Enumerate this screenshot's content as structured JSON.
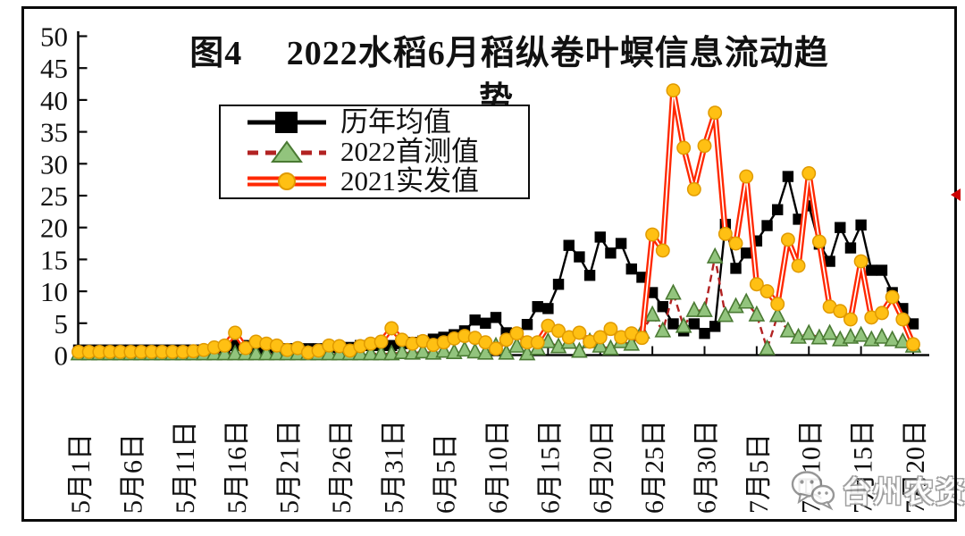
{
  "title": {
    "line1": "图4　 2022水稻6月稻纵卷叶螟信息流动趋",
    "line2": "势"
  },
  "legend": {
    "items": [
      {
        "label": "历年均值"
      },
      {
        "label": "2022首测值"
      },
      {
        "label": "2021实发值"
      }
    ]
  },
  "watermark": {
    "icon": "wechat-icon",
    "text": "台州农资"
  },
  "colors": {
    "axis": "#0a0a0a",
    "avg_line": "#000000",
    "first2022_line": "#b22222",
    "first2022_marker_fill": "#92c47d",
    "first2022_marker_stroke": "#4a7a33",
    "actual2021_line": "#ff2800",
    "actual2021_marker_fill": "#ffc013",
    "actual2021_marker_stroke": "#e09a00"
  },
  "chart_data": {
    "type": "line",
    "title": "图4 2022水稻6月稻纵卷叶螟信息流动趋势",
    "ylim": [
      0,
      50
    ],
    "y_ticks": [
      0,
      5,
      10,
      15,
      20,
      25,
      30,
      35,
      40,
      45,
      50
    ],
    "x_start": "5月1日",
    "x_end": "7月20日",
    "x_days": 81,
    "x_tick_every_days": 5,
    "x_tick_labels": [
      "5月1日",
      "5月6日",
      "5月11日",
      "5月16日",
      "5月21日",
      "5月26日",
      "5月31日",
      "6月5日",
      "6月10日",
      "6月15日",
      "6月20日",
      "6月25日",
      "6月30日",
      "7月5日",
      "7月10日",
      "7月15日",
      "7月20日"
    ],
    "grid": false,
    "legend_position": "upper-left-inside",
    "series": [
      {
        "name": "历年均值",
        "marker": "square",
        "line_style": "solid",
        "color": "#000000",
        "marker_fill": "#000000",
        "marker_stroke": "#000000",
        "values": [
          0.8,
          0.8,
          0.8,
          0.8,
          0.8,
          0.8,
          0.8,
          0.8,
          0.8,
          0.8,
          0.8,
          0.8,
          0.8,
          0.8,
          1.0,
          1.5,
          1.5,
          1.0,
          1.0,
          1.0,
          1.0,
          1.0,
          1.0,
          1.0,
          1.2,
          1.2,
          1.2,
          1.5,
          1.5,
          1.5,
          1.5,
          1.8,
          2.0,
          2.2,
          2.5,
          2.8,
          3.2,
          3.8,
          5.5,
          5.0,
          5.9,
          3.5,
          3.4,
          4.8,
          7.6,
          7.3,
          11.1,
          17.2,
          15.4,
          12.5,
          18.5,
          16.0,
          17.5,
          13.5,
          12.2,
          9.8,
          7.6,
          4.9,
          3.8,
          4.9,
          3.4,
          4.5,
          20.5,
          13.6,
          16.0,
          17.9,
          20.3,
          22.8,
          28.0,
          21.3,
          23.4,
          17.4,
          14.7,
          20.0,
          16.8,
          20.4,
          13.3,
          13.3,
          9.8,
          7.3,
          4.9
        ]
      },
      {
        "name": "2022首测值",
        "marker": "triangle",
        "line_style": "dashed",
        "color": "#b22222",
        "marker_fill": "#92c47d",
        "marker_stroke": "#4a7a33",
        "values": [
          0.2,
          0.2,
          0.2,
          0.2,
          0.2,
          0.2,
          0.2,
          0.2,
          0.2,
          0.2,
          0.2,
          0.2,
          0.2,
          0.2,
          0.2,
          0.2,
          0.2,
          0.2,
          0.2,
          0.2,
          0.2,
          0.2,
          0.2,
          0.2,
          0.2,
          0.2,
          0.2,
          0.2,
          0.2,
          0.2,
          0.2,
          0.4,
          0.3,
          0.5,
          0.3,
          0.6,
          0.4,
          0.8,
          0.5,
          0.3,
          1.4,
          0.3,
          1.4,
          0.2,
          1.0,
          2.1,
          1.3,
          2.0,
          0.6,
          2.1,
          1.4,
          1.0,
          2.1,
          1.7,
          3.6,
          6.3,
          3.8,
          9.7,
          4.5,
          7.0,
          7.0,
          15.4,
          6.2,
          7.6,
          8.3,
          6.3,
          1.0,
          6.2,
          3.8,
          2.8,
          3.4,
          2.7,
          3.4,
          2.4,
          2.8,
          3.1,
          2.4,
          2.8,
          2.4,
          2.1,
          1.4
        ]
      },
      {
        "name": "2021实发值",
        "marker": "circle",
        "line_style": "double",
        "color": "#ff2800",
        "marker_fill": "#ffc013",
        "marker_stroke": "#e09a00",
        "values": [
          0.5,
          0.5,
          0.5,
          0.5,
          0.5,
          0.5,
          0.5,
          0.5,
          0.5,
          0.5,
          0.5,
          0.6,
          0.8,
          1.2,
          1.5,
          3.5,
          1.1,
          2.1,
          1.8,
          1.5,
          0.8,
          1.1,
          0.4,
          0.7,
          1.5,
          1.4,
          0.7,
          1.4,
          1.8,
          2.1,
          4.2,
          2.4,
          1.8,
          2.2,
          1.6,
          2.0,
          2.6,
          3.0,
          2.7,
          2.0,
          1.0,
          2.4,
          3.4,
          2.0,
          2.0,
          4.6,
          3.8,
          2.8,
          3.5,
          2.1,
          2.8,
          4.1,
          2.8,
          3.4,
          2.7,
          18.9,
          16.4,
          41.5,
          32.5,
          26.0,
          32.8,
          38.0,
          19.0,
          17.5,
          28.0,
          11.1,
          10.0,
          8.0,
          18.1,
          14.0,
          28.5,
          17.8,
          7.6,
          6.9,
          5.6,
          14.7,
          5.9,
          6.6,
          9.1,
          5.6,
          1.7
        ]
      }
    ]
  }
}
